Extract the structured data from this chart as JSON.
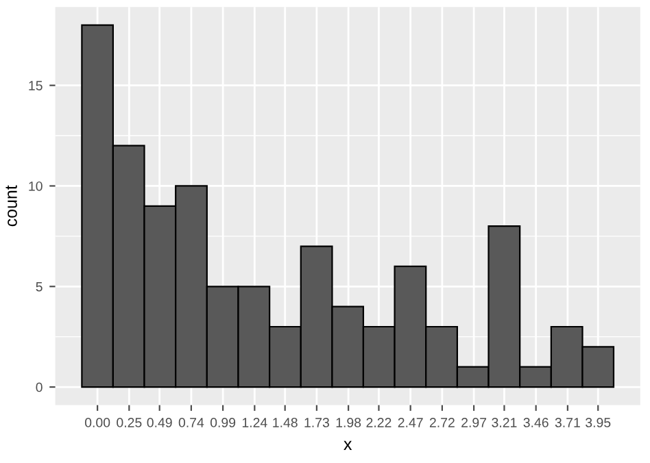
{
  "chart_data": {
    "type": "histogram",
    "xlabel": "x",
    "ylabel": "count",
    "color": "#595959",
    "bins": [
      -0.123,
      0.123,
      0.37,
      0.617,
      0.864,
      1.111,
      1.358,
      1.605,
      1.852,
      2.098,
      2.345,
      2.592,
      2.839,
      3.086,
      3.333,
      3.58,
      3.827,
      4.073
    ],
    "values": [
      18,
      12,
      9,
      10,
      5,
      5,
      3,
      7,
      4,
      3,
      6,
      3,
      1,
      8,
      1,
      3,
      2
    ],
    "xlim": [
      -0.333,
      4.283
    ],
    "ylim": [
      -0.9,
      18.9
    ],
    "xticks": [
      {
        "value": 0,
        "label": "0.00"
      },
      {
        "value": 0.25,
        "label": "0.25"
      },
      {
        "value": 0.49,
        "label": "0.49"
      },
      {
        "value": 0.74,
        "label": "0.74"
      },
      {
        "value": 0.99,
        "label": "0.99"
      },
      {
        "value": 1.24,
        "label": "1.24"
      },
      {
        "value": 1.48,
        "label": "1.48"
      },
      {
        "value": 1.73,
        "label": "1.73"
      },
      {
        "value": 1.98,
        "label": "1.98"
      },
      {
        "value": 2.22,
        "label": "2.22"
      },
      {
        "value": 2.47,
        "label": "2.47"
      },
      {
        "value": 2.72,
        "label": "2.72"
      },
      {
        "value": 2.97,
        "label": "2.97"
      },
      {
        "value": 3.21,
        "label": "3.21"
      },
      {
        "value": 3.46,
        "label": "3.46"
      },
      {
        "value": 3.71,
        "label": "3.71"
      },
      {
        "value": 3.95,
        "label": "3.95"
      }
    ],
    "yticks": [
      0,
      5,
      10,
      15
    ],
    "grid": true
  }
}
